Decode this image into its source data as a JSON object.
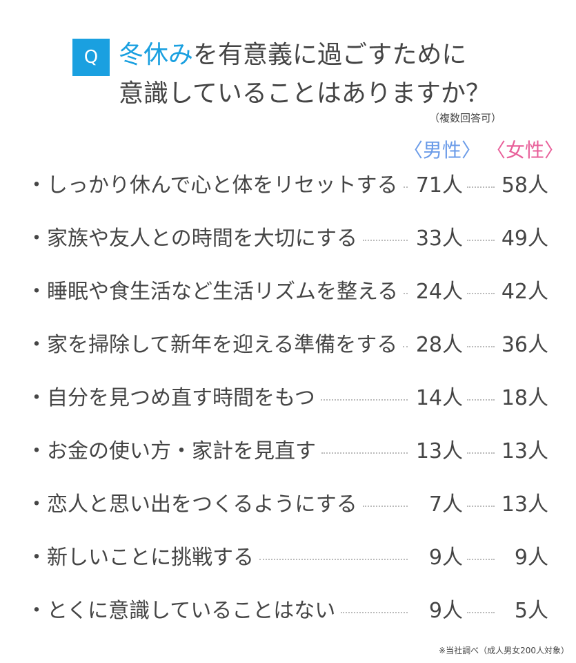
{
  "question_mark": "Q",
  "title": {
    "accent": "冬休み",
    "line1_rest": "を有意義に過ごすために",
    "line2": "意識していることはありますか？"
  },
  "note": "（複数回答可）",
  "colors": {
    "accent": "#1aa0e0",
    "male": "#6a9be8",
    "female": "#e8609a",
    "text": "#454545"
  },
  "chart_data": {
    "type": "table",
    "columns": [
      "〈男性〉",
      "〈女性〉"
    ],
    "rows": [
      {
        "label": "・しっかり休んで心と体をリセットする",
        "male": "71人",
        "female": "58人"
      },
      {
        "label": "・家族や友人との時間を大切にする",
        "male": "33人",
        "female": "49人"
      },
      {
        "label": "・睡眠や食生活など生活リズムを整える",
        "male": "24人",
        "female": "42人"
      },
      {
        "label": "・家を掃除して新年を迎える準備をする",
        "male": "28人",
        "female": "36人"
      },
      {
        "label": "・自分を見つめ直す時間をもつ",
        "male": "14人",
        "female": "18人"
      },
      {
        "label": "・お金の使い方・家計を見直す",
        "male": "13人",
        "female": "13人"
      },
      {
        "label": "・恋人と思い出をつくるようにする",
        "male": "7人",
        "female": "13人"
      },
      {
        "label": "・新しいことに挑戦する",
        "male": "9人",
        "female": "9人"
      },
      {
        "label": "・とくに意識していることはない",
        "male": "9人",
        "female": "5人"
      }
    ]
  },
  "footnote": "※当社調べ（成人男女200人対象）"
}
